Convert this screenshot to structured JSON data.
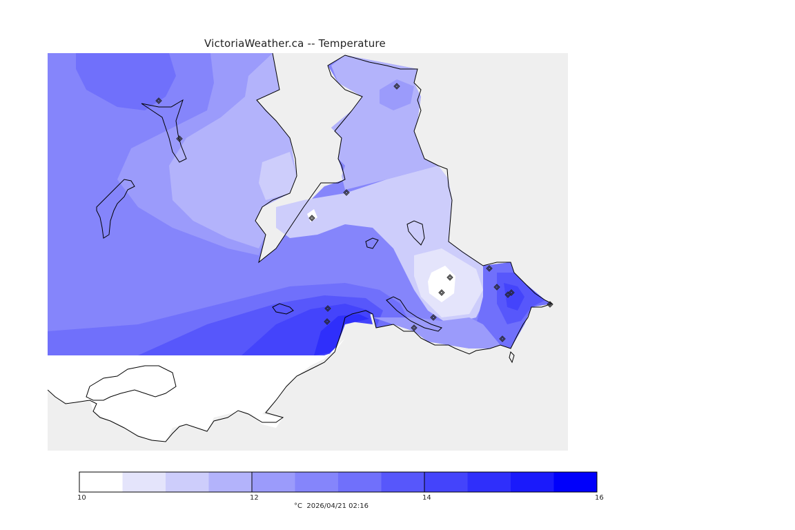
{
  "title": "VictoriaWeather.ca -- Temperature",
  "map": {
    "land_color": "#efefef",
    "coast_color": "#000000",
    "station_count": 17
  },
  "legend": {
    "colors": [
      "#ffffff",
      "#e4e4fb",
      "#cdcdfb",
      "#b3b3fb",
      "#9b9bfb",
      "#8585fb",
      "#7070fb",
      "#5757fb",
      "#4444fb",
      "#2f2ffb",
      "#1a1afb",
      "#0000fb"
    ],
    "min": 10,
    "max": 16,
    "tick_labels": [
      "10",
      "12",
      "14",
      "16"
    ],
    "units_time": "°C  2026/04/21 02:16"
  }
}
